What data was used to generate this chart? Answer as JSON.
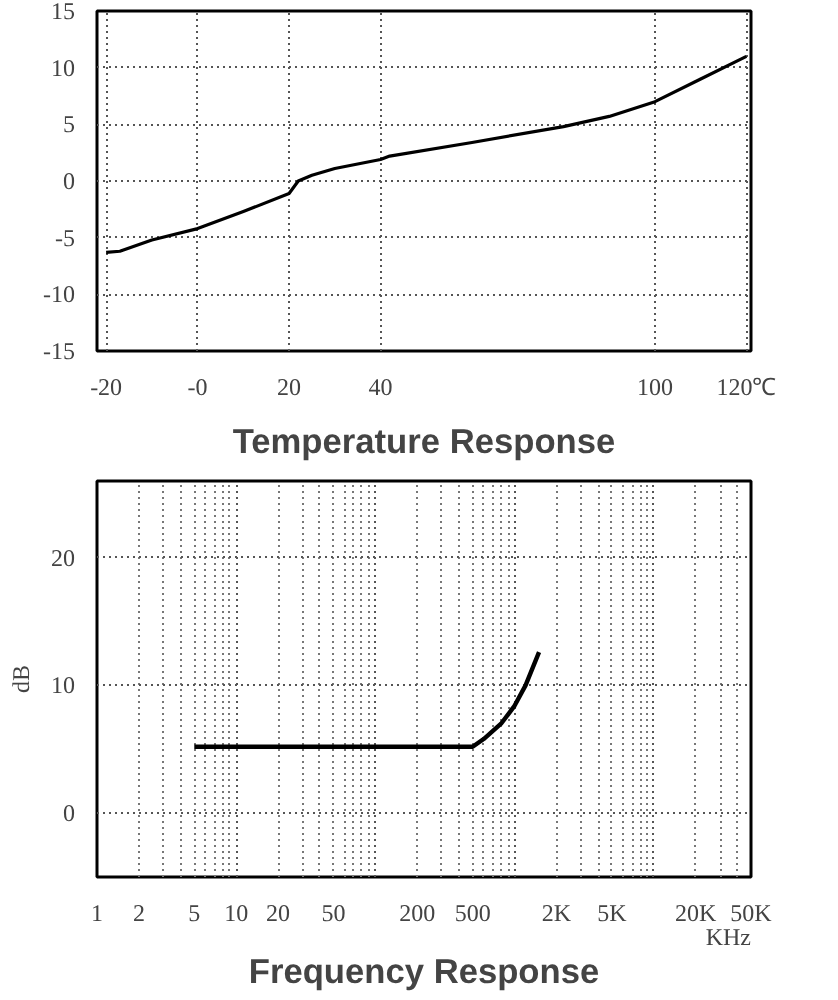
{
  "chart_data": [
    {
      "type": "line",
      "title": "Temperature Response",
      "x": [
        -20,
        -17,
        -10,
        0,
        10,
        20,
        22,
        25,
        30,
        40,
        42,
        60,
        80,
        90,
        100,
        110,
        120
      ],
      "series": [
        {
          "color": "#000000",
          "values": [
            -6.3,
            -6.2,
            -5.2,
            -4.2,
            -2.7,
            -1.1,
            0,
            0.5,
            1.1,
            1.9,
            2.2,
            3.4,
            4.8,
            5.7,
            7,
            9,
            11
          ]
        }
      ],
      "xlim": [
        -22,
        121
      ],
      "ylim": [
        -15,
        15
      ],
      "xticks": [
        -20,
        {
          "value": 0,
          "label": "-0"
        },
        20,
        40,
        100,
        {
          "value": 120,
          "label": "120℃"
        }
      ],
      "yticks": [
        -15,
        -10,
        -5,
        0,
        5,
        10,
        15
      ],
      "grid": true,
      "marker": "none",
      "line_style": "solid"
    },
    {
      "type": "line",
      "title": "Frequency Response",
      "ylabel": "dB",
      "xlabel": "KHz",
      "log": "x",
      "x": [
        5,
        500,
        600,
        800,
        1000,
        1200,
        1500
      ],
      "series": [
        {
          "color": "#000000",
          "values": [
            5.2,
            5.2,
            5.8,
            7,
            8.4,
            10,
            12.6
          ]
        }
      ],
      "xlim": [
        1,
        50000
      ],
      "ylim": [
        -5,
        26
      ],
      "xticks": [
        1,
        2,
        5,
        10,
        20,
        50,
        200,
        500,
        {
          "value": 2000,
          "label": "2K"
        },
        {
          "value": 5000,
          "label": "5K"
        },
        {
          "value": 20000,
          "label": "20K"
        },
        {
          "value": 50000,
          "label": "50K"
        }
      ],
      "yticks": [
        0,
        10,
        20
      ],
      "grid": true,
      "marker": "none",
      "line_style": "solid"
    }
  ]
}
